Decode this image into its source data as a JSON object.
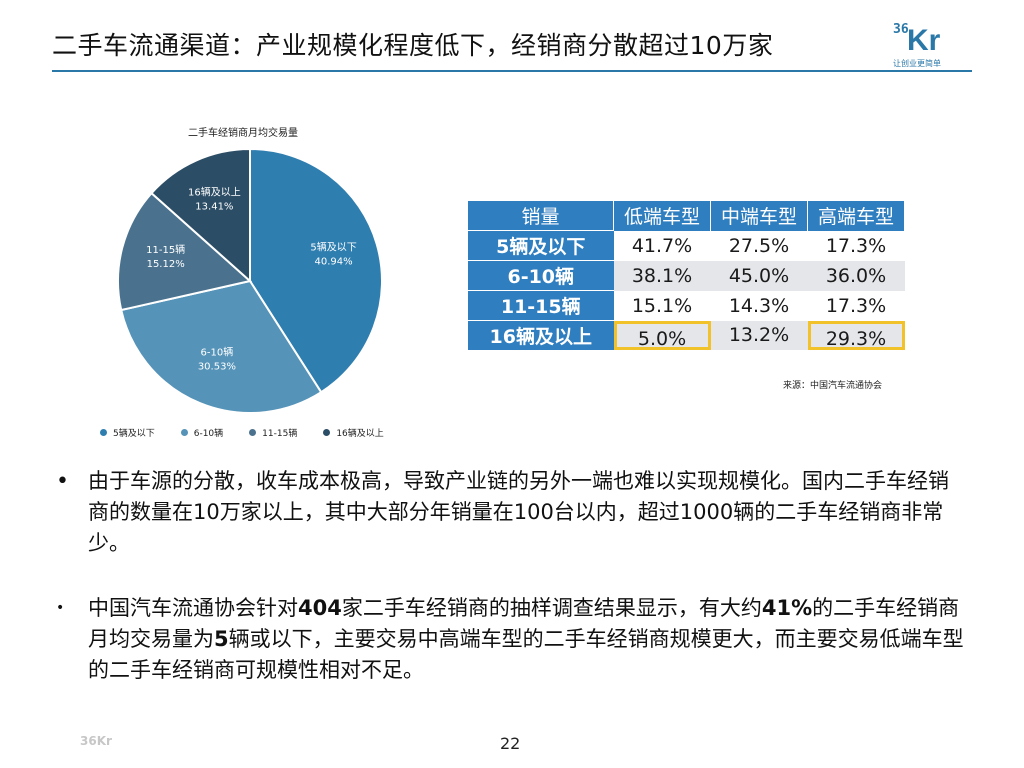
{
  "header": {
    "title": "二手车流通渠道：产业规模化程度低下，经销商分散超过10万家",
    "logo_number": "36",
    "logo_text": "Kr",
    "logo_tagline": "让创业更简单"
  },
  "chart_data": {
    "type": "pie",
    "title": "二手车经销商月均交易量",
    "categories": [
      "5辆及以下",
      "6-10辆",
      "11-15辆",
      "16辆及以上"
    ],
    "values": [
      40.94,
      30.53,
      15.12,
      13.41
    ],
    "value_labels": [
      "40.94%",
      "30.53%",
      "15.12%",
      "13.41%"
    ],
    "colors": [
      "#2f7eb0",
      "#5593b8",
      "#4a728f",
      "#2c4d66"
    ],
    "legend_position": "bottom"
  },
  "table": {
    "headers": [
      "销量",
      "低端车型",
      "中端车型",
      "高端车型"
    ],
    "rows": [
      {
        "label": "5辆及以下",
        "values": [
          "41.7%",
          "27.5%",
          "17.3%"
        ]
      },
      {
        "label": "6-10辆",
        "values": [
          "38.1%",
          "45.0%",
          "36.0%"
        ]
      },
      {
        "label": "11-15辆",
        "values": [
          "15.1%",
          "14.3%",
          "17.3%"
        ]
      },
      {
        "label": "16辆及以上",
        "values": [
          "5.0%",
          "13.2%",
          "29.3%"
        ]
      }
    ],
    "highlight_color": "#f2c22a"
  },
  "source": "来源：中国汽车流通协会",
  "bullets": {
    "first": "由于车源的分散，收车成本极高，导致产业链的另外一端也难以实现规模化。国内二手车经销商的数量在10万家以上，其中大部分年销量在100台以内，超过1000辆的二手车经销商非常少。",
    "second_parts": [
      "中国汽车流通协会针对",
      "404",
      "家二手车经销商的抽样调查结果显示，有大约",
      "41%",
      "的二手车经销商月均交易量为",
      "5",
      "辆或以下，主要交易中高端车型的二手车经销商规模更大，而主要交易低端车型的二手车经销商可规模性相对不足。"
    ]
  },
  "footer": {
    "logo": "36Kr",
    "page_number": "22"
  }
}
